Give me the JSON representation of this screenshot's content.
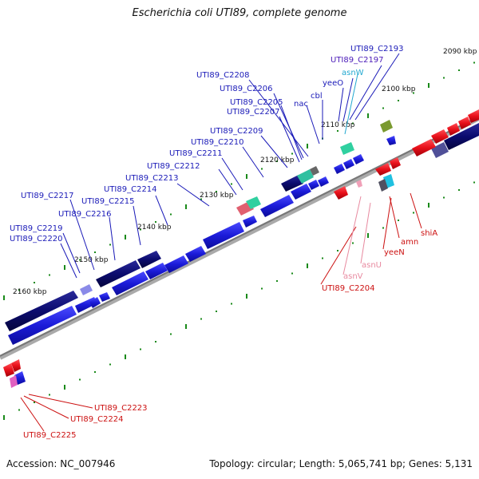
{
  "title": "Escherichia coli UTI89, complete genome",
  "footer": {
    "accession": "Accession: NC_007946",
    "summary": "Topology: circular; Length: 5,065,741 bp; Genes: 5,131"
  },
  "colors": {
    "forward_dark": "#0b0b6e",
    "forward_blue": "#1b1bd8",
    "reverse_red": "#e8101a",
    "backbone": "#808080",
    "tick_green": "#1a8a1a",
    "label_blue": "#1a1ab8",
    "label_red": "#cc1010",
    "label_pink": "#e88aa0",
    "label_cyan": "#22a8d0",
    "label_purple": "#4a1ab8"
  },
  "scale_labels": [
    "2090 kbp",
    "2100 kbp",
    "2110 kbp",
    "2120 kbp",
    "2130 kbp",
    "2140 kbp",
    "2150 kbp",
    "2160 kbp"
  ],
  "gene_labels_forward": [
    "UTI89_C2193",
    "UTI89_C2197",
    "asnW",
    "yeeO",
    "cbl",
    "nac",
    "UTI89_C2208",
    "UTI89_C2206",
    "UTI89_C2205",
    "UTI89_C2207",
    "UTI89_C2209",
    "UTI89_C2210",
    "UTI89_C2211",
    "UTI89_C2212",
    "UTI89_C2213",
    "UTI89_C2214",
    "UTI89_C2217",
    "UTI89_C2215",
    "UTI89_C2216",
    "UTI89_C2219",
    "UTI89_C2220"
  ],
  "gene_labels_reverse": [
    "shiA",
    "amn",
    "yeeN",
    "asnU",
    "asnV",
    "UTI89_C2204",
    "UTI89_C2223",
    "UTI89_C2224",
    "UTI89_C2225"
  ]
}
